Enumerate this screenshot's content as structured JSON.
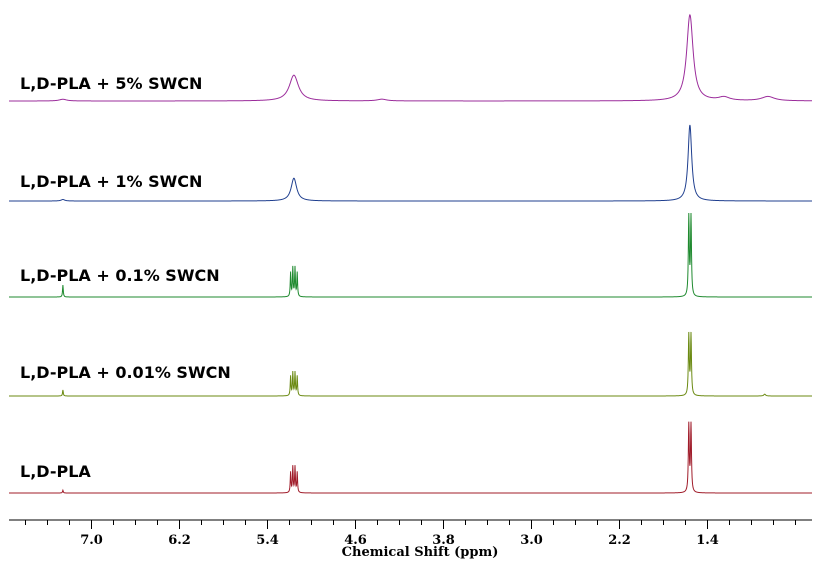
{
  "chart_data": {
    "type": "line",
    "title": "",
    "xlabel": "Chemical Shift (ppm)",
    "ylabel": "",
    "xlim": [
      7.75,
      0.45
    ],
    "x_reversed": true,
    "grid": false,
    "legend": "none",
    "x_ticks": [
      7.0,
      6.2,
      5.4,
      4.6,
      3.8,
      3.0,
      2.2,
      1.4
    ],
    "x_tick_labels": [
      "7.0",
      "6.2",
      "5.4",
      "4.6",
      "3.8",
      "3.0",
      "2.2",
      "1.4"
    ],
    "series": [
      {
        "name": "L,D-PLA + 5% SWCN",
        "color": "#9b2c9b",
        "peaks": [
          {
            "shift": 7.26,
            "height": 0.02,
            "width": 0.04
          },
          {
            "shift": 5.16,
            "height": 0.3,
            "width": 0.05
          },
          {
            "shift": 4.36,
            "height": 0.02,
            "width": 0.05
          },
          {
            "shift": 1.56,
            "height": 1.0,
            "width": 0.035
          },
          {
            "shift": 1.25,
            "height": 0.04,
            "width": 0.06
          },
          {
            "shift": 0.85,
            "height": 0.05,
            "width": 0.07
          }
        ]
      },
      {
        "name": "L,D-PLA + 1% SWCN",
        "color": "#1f3f8f",
        "peaks": [
          {
            "shift": 7.26,
            "height": 0.02,
            "width": 0.02
          },
          {
            "shift": 5.16,
            "height": 0.3,
            "width": 0.03
          },
          {
            "shift": 1.56,
            "height": 1.0,
            "width": 0.02
          }
        ]
      },
      {
        "name": "L,D-PLA + 0.1% SWCN",
        "color": "#1f8a2f",
        "peaks": [
          {
            "shift": 7.26,
            "height": 0.15,
            "width": 0.004
          },
          {
            "shift": 5.19,
            "height": 0.3,
            "width": 0.004
          },
          {
            "shift": 5.17,
            "height": 0.36,
            "width": 0.004
          },
          {
            "shift": 5.15,
            "height": 0.36,
            "width": 0.004
          },
          {
            "shift": 5.13,
            "height": 0.3,
            "width": 0.004
          },
          {
            "shift": 1.57,
            "height": 1.0,
            "width": 0.005
          },
          {
            "shift": 1.55,
            "height": 1.0,
            "width": 0.005
          }
        ]
      },
      {
        "name": "L,D-PLA + 0.01% SWCN",
        "color": "#6b8a12",
        "peaks": [
          {
            "shift": 7.26,
            "height": 0.1,
            "width": 0.004
          },
          {
            "shift": 5.19,
            "height": 0.32,
            "width": 0.004
          },
          {
            "shift": 5.17,
            "height": 0.38,
            "width": 0.004
          },
          {
            "shift": 5.15,
            "height": 0.38,
            "width": 0.004
          },
          {
            "shift": 5.13,
            "height": 0.32,
            "width": 0.004
          },
          {
            "shift": 1.57,
            "height": 1.0,
            "width": 0.005
          },
          {
            "shift": 1.55,
            "height": 1.0,
            "width": 0.005
          },
          {
            "shift": 0.88,
            "height": 0.03,
            "width": 0.01
          }
        ]
      },
      {
        "name": "L,D-PLA",
        "color": "#a01c2a",
        "peaks": [
          {
            "shift": 7.26,
            "height": 0.04,
            "width": 0.004
          },
          {
            "shift": 5.19,
            "height": 0.3,
            "width": 0.004
          },
          {
            "shift": 5.17,
            "height": 0.38,
            "width": 0.004
          },
          {
            "shift": 5.15,
            "height": 0.38,
            "width": 0.004
          },
          {
            "shift": 5.13,
            "height": 0.3,
            "width": 0.004
          },
          {
            "shift": 1.57,
            "height": 1.0,
            "width": 0.005
          },
          {
            "shift": 1.55,
            "height": 1.0,
            "width": 0.005
          }
        ]
      }
    ]
  }
}
